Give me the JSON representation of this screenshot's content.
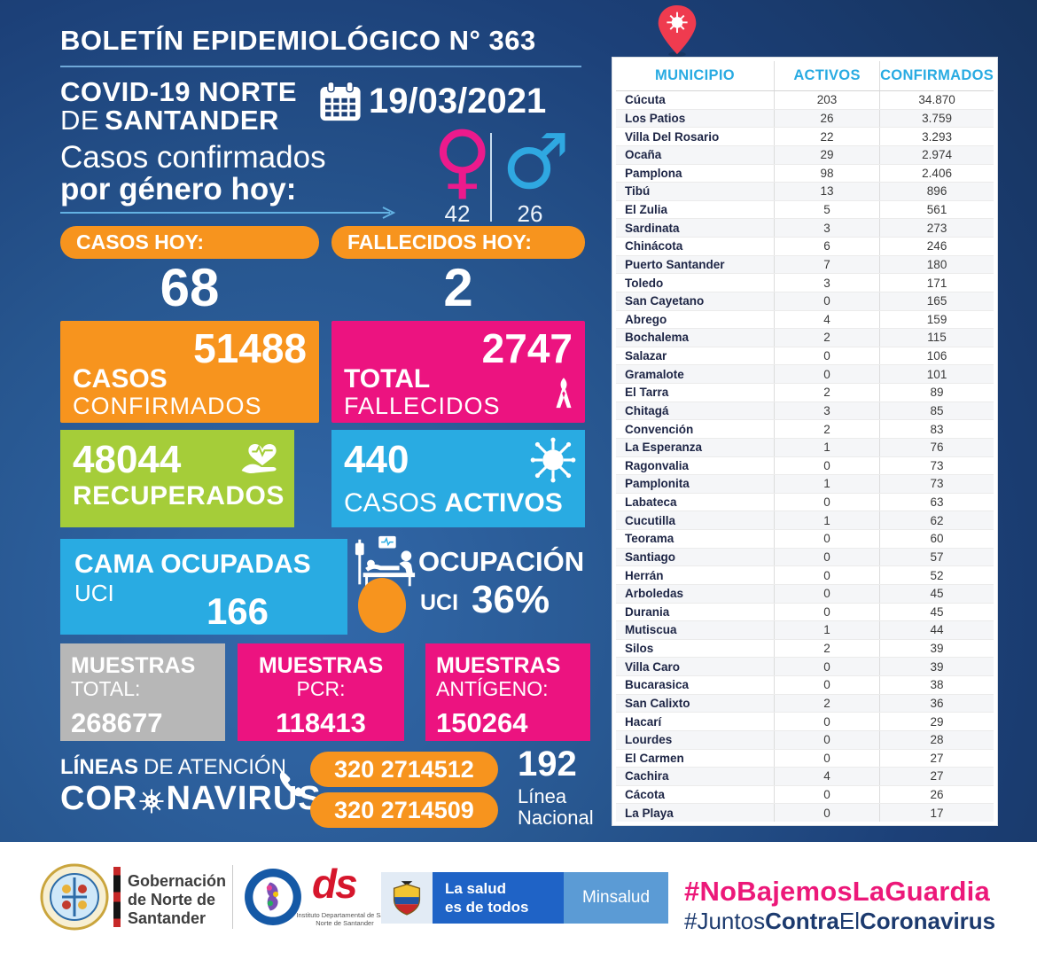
{
  "header": {
    "title": "BOLETÍN EPIDEMIOLÓGICO N° 363",
    "covid_line1": "COVID-19 NORTE",
    "covid_line2_de": "DE",
    "covid_line2_bold": "SANTANDER",
    "date": "19/03/2021"
  },
  "genero": {
    "line1": "Casos confirmados",
    "line2": "por género hoy:",
    "female_symbol": "♀",
    "male_symbol": "♂",
    "female_count": "42",
    "male_count": "26"
  },
  "today": {
    "cases_label": "CASOS HOY:",
    "cases_value": "68",
    "deaths_label": "FALLECIDOS HOY:",
    "deaths_value": "2"
  },
  "totals": {
    "confirmed": {
      "value": "51488",
      "l1": "CASOS",
      "l2": "CONFIRMADOS"
    },
    "deaths": {
      "value": "2747",
      "l1": "TOTAL",
      "l2": "FALLECIDOS"
    },
    "recovered": {
      "value": "48044",
      "label": "RECUPERADOS"
    },
    "active": {
      "value": "440",
      "l1": "CASOS",
      "l2": "ACTIVOS"
    },
    "icu_beds": {
      "l1": "CAMA OCUPADAS",
      "l2": "UCI",
      "value": "166"
    },
    "icu_occupancy": {
      "label1": "OCUPACIÓN",
      "label2": "UCI",
      "value": "36%"
    }
  },
  "samples": [
    {
      "title": "MUESTRAS",
      "sub": "TOTAL:",
      "value": "268677"
    },
    {
      "title": "MUESTRAS",
      "sub": "PCR:",
      "value": "118413"
    },
    {
      "title": "MUESTRAS",
      "sub": "ANTÍGENO:",
      "value": "150264"
    }
  ],
  "hotlines": {
    "l1_bold": "LÍNEAS",
    "l1_rest": "DE ATENCIÓN",
    "brand_a": "COR",
    "brand_b": "NAVIRUS",
    "phone1": "320 2714512",
    "phone2": "320 2714509",
    "national_value": "192",
    "national_l1": "Línea",
    "national_l2": "Nacional"
  },
  "table": {
    "headers": [
      "MUNICIPIO",
      "ACTIVOS",
      "CONFIRMADOS"
    ],
    "rows": [
      [
        "Cúcuta",
        "203",
        "34.870"
      ],
      [
        "Los Patios",
        "26",
        "3.759"
      ],
      [
        "Villa Del Rosario",
        "22",
        "3.293"
      ],
      [
        "Ocaña",
        "29",
        "2.974"
      ],
      [
        "Pamplona",
        "98",
        "2.406"
      ],
      [
        "Tibú",
        "13",
        "896"
      ],
      [
        "El Zulia",
        "5",
        "561"
      ],
      [
        "Sardinata",
        "3",
        "273"
      ],
      [
        "Chinácota",
        "6",
        "246"
      ],
      [
        "Puerto Santander",
        "7",
        "180"
      ],
      [
        "Toledo",
        "3",
        "171"
      ],
      [
        "San Cayetano",
        "0",
        "165"
      ],
      [
        "Abrego",
        "4",
        "159"
      ],
      [
        "Bochalema",
        "2",
        "115"
      ],
      [
        "Salazar",
        "0",
        "106"
      ],
      [
        "Gramalote",
        "0",
        "101"
      ],
      [
        "El Tarra",
        "2",
        "89"
      ],
      [
        "Chitagá",
        "3",
        "85"
      ],
      [
        "Convención",
        "2",
        "83"
      ],
      [
        "La Esperanza",
        "1",
        "76"
      ],
      [
        "Ragonvalia",
        "0",
        "73"
      ],
      [
        "Pamplonita",
        "1",
        "73"
      ],
      [
        "Labateca",
        "0",
        "63"
      ],
      [
        "Cucutilla",
        "1",
        "62"
      ],
      [
        "Teorama",
        "0",
        "60"
      ],
      [
        "Santiago",
        "0",
        "57"
      ],
      [
        "Herrán",
        "0",
        "52"
      ],
      [
        "Arboledas",
        "0",
        "45"
      ],
      [
        "Durania",
        "0",
        "45"
      ],
      [
        "Mutiscua",
        "1",
        "44"
      ],
      [
        "Silos",
        "2",
        "39"
      ],
      [
        "Villa Caro",
        "0",
        "39"
      ],
      [
        "Bucarasica",
        "0",
        "38"
      ],
      [
        "San Calixto",
        "2",
        "36"
      ],
      [
        "Hacarí",
        "0",
        "29"
      ],
      [
        "Lourdes",
        "0",
        "28"
      ],
      [
        "El Carmen",
        "0",
        "27"
      ],
      [
        "Cachira",
        "4",
        "27"
      ],
      [
        "Cácota",
        "0",
        "26"
      ],
      [
        "La Playa",
        "0",
        "17"
      ]
    ]
  },
  "footer": {
    "gobernacion": "Gobernación\nde Norte de\nSantander",
    "ds": "ds",
    "ids_caption1": "Instituto Departamental de Salud",
    "ids_caption2": "Norte de Santander",
    "salud_l1": "La salud",
    "salud_l2": "es de todos",
    "minsalud": "Minsalud",
    "hashtag1": "#NoBajemosLaGuardia",
    "hashtag2_a": "#Juntos",
    "hashtag2_b": "Contra",
    "hashtag2_c": "El",
    "hashtag2_d": "Coronavirus"
  },
  "colors": {
    "orange": "#f7941e",
    "magenta": "#ec1380",
    "green": "#a5cd39",
    "sky_blue": "#29abe2",
    "gray": "#b7b7b7",
    "pin_red": "#ef3b4f",
    "hashtag_pink": "#ec1879",
    "navy": "#1c3a6e",
    "background_blue": "#24508c"
  }
}
